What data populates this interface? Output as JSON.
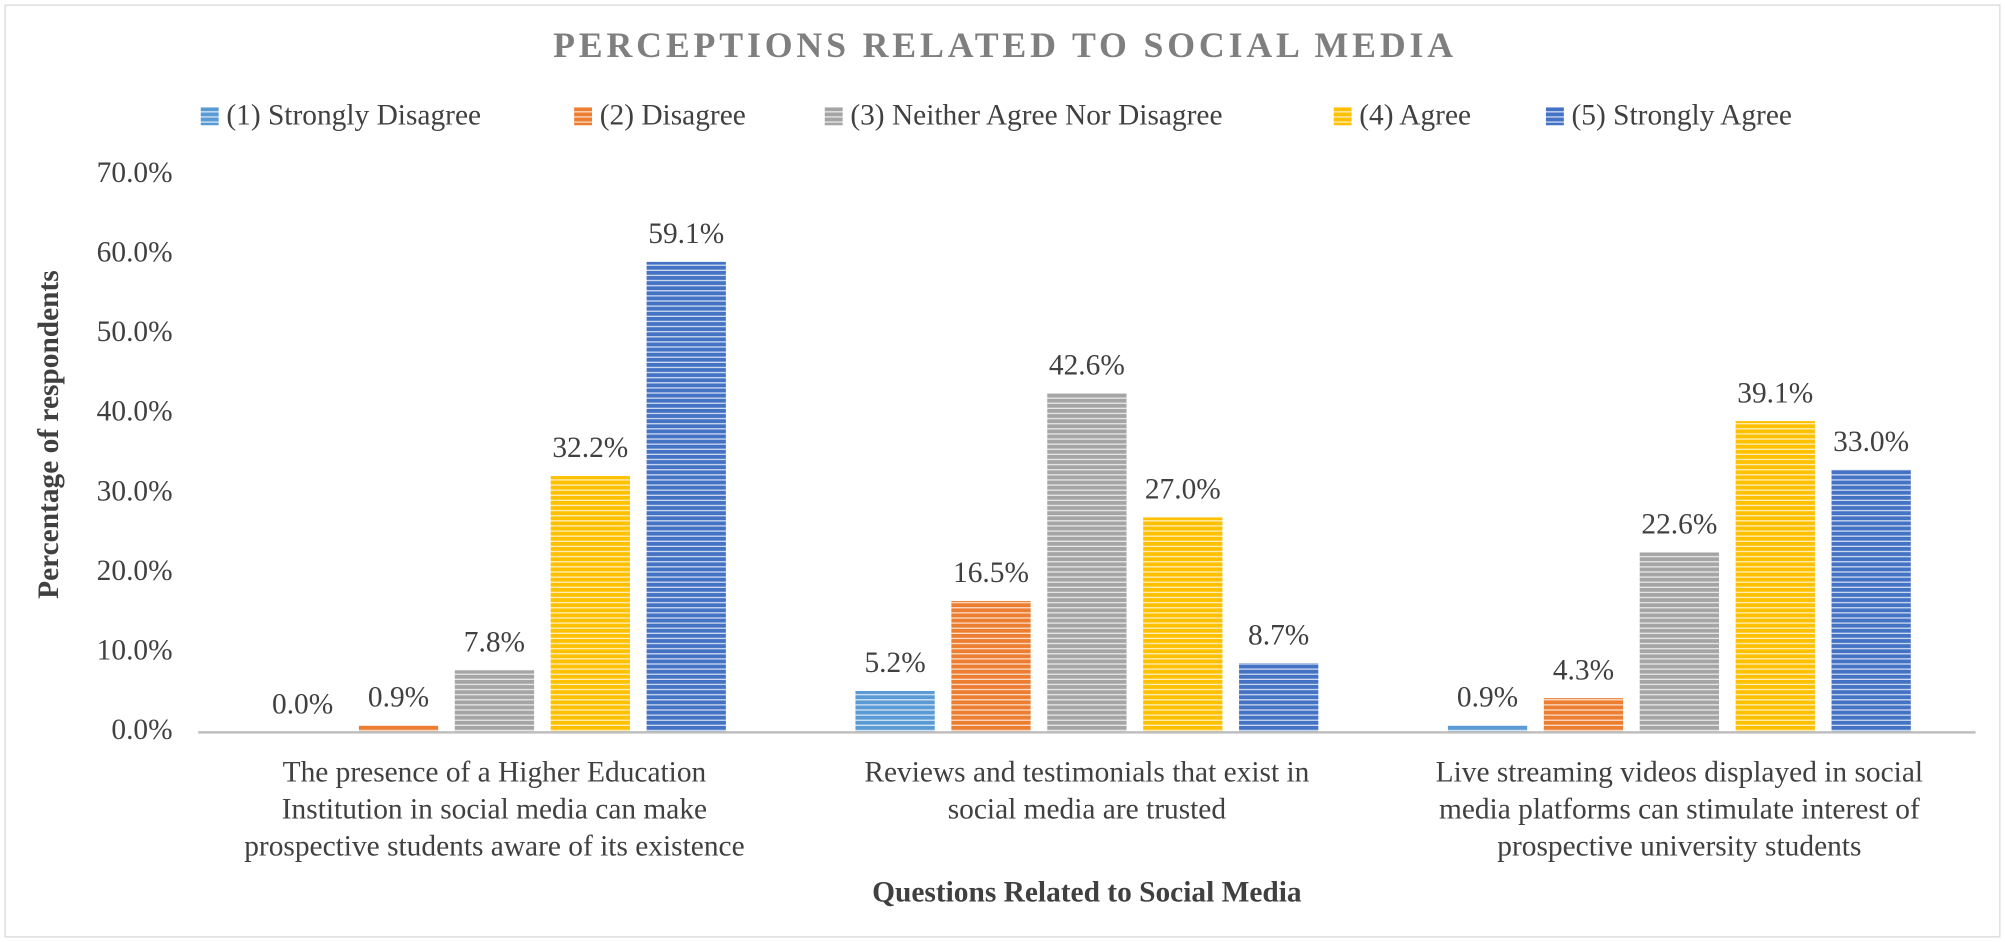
{
  "chart_data": {
    "type": "bar",
    "title": "PERCEPTIONS RELATED TO SOCIAL MEDIA",
    "xlabel": "Questions Related to Social Media",
    "ylabel": "Percentage of respondents",
    "categories": [
      "The presence of a Higher Education Institution in social media can make prospective students aware of its existence",
      "Reviews and testimonials that exist in social media are trusted",
      "Live streaming videos displayed in social media platforms can stimulate interest of prospective university students"
    ],
    "series": [
      {
        "name": "(1) Strongly Disagree",
        "color": "#5b9bd5",
        "values": [
          0.0,
          5.2,
          0.9
        ],
        "value_labels": [
          "0.0%",
          "5.2%",
          "0.9%"
        ]
      },
      {
        "name": "(2) Disagree",
        "color": "#ed7d31",
        "values": [
          0.9,
          16.5,
          4.3
        ],
        "value_labels": [
          "0.9%",
          "16.5%",
          "4.3%"
        ]
      },
      {
        "name": "(3) Neither Agree Nor Disagree",
        "color": "#a5a5a5",
        "values": [
          7.8,
          42.6,
          22.6
        ],
        "value_labels": [
          "7.8%",
          "42.6%",
          "22.6%"
        ]
      },
      {
        "name": "(4) Agree",
        "color": "#ffc000",
        "values": [
          32.2,
          27.0,
          39.1
        ],
        "value_labels": [
          "32.2%",
          "27.0%",
          "39.1%"
        ]
      },
      {
        "name": "(5) Strongly Agree",
        "color": "#4472c4",
        "values": [
          59.1,
          8.7,
          33.0
        ],
        "value_labels": [
          "59.1%",
          "8.7%",
          "33.0%"
        ]
      }
    ],
    "ylim": [
      0,
      70
    ],
    "yticks": [
      {
        "value": 0,
        "label": "0.0%"
      },
      {
        "value": 10,
        "label": "10.0%"
      },
      {
        "value": 20,
        "label": "20.0%"
      },
      {
        "value": 30,
        "label": "30.0%"
      },
      {
        "value": 40,
        "label": "40.0%"
      },
      {
        "value": 50,
        "label": "50.0%"
      },
      {
        "value": 60,
        "label": "60.0%"
      },
      {
        "value": 70,
        "label": "70.0%"
      }
    ],
    "legend": "top",
    "grid": false
  }
}
